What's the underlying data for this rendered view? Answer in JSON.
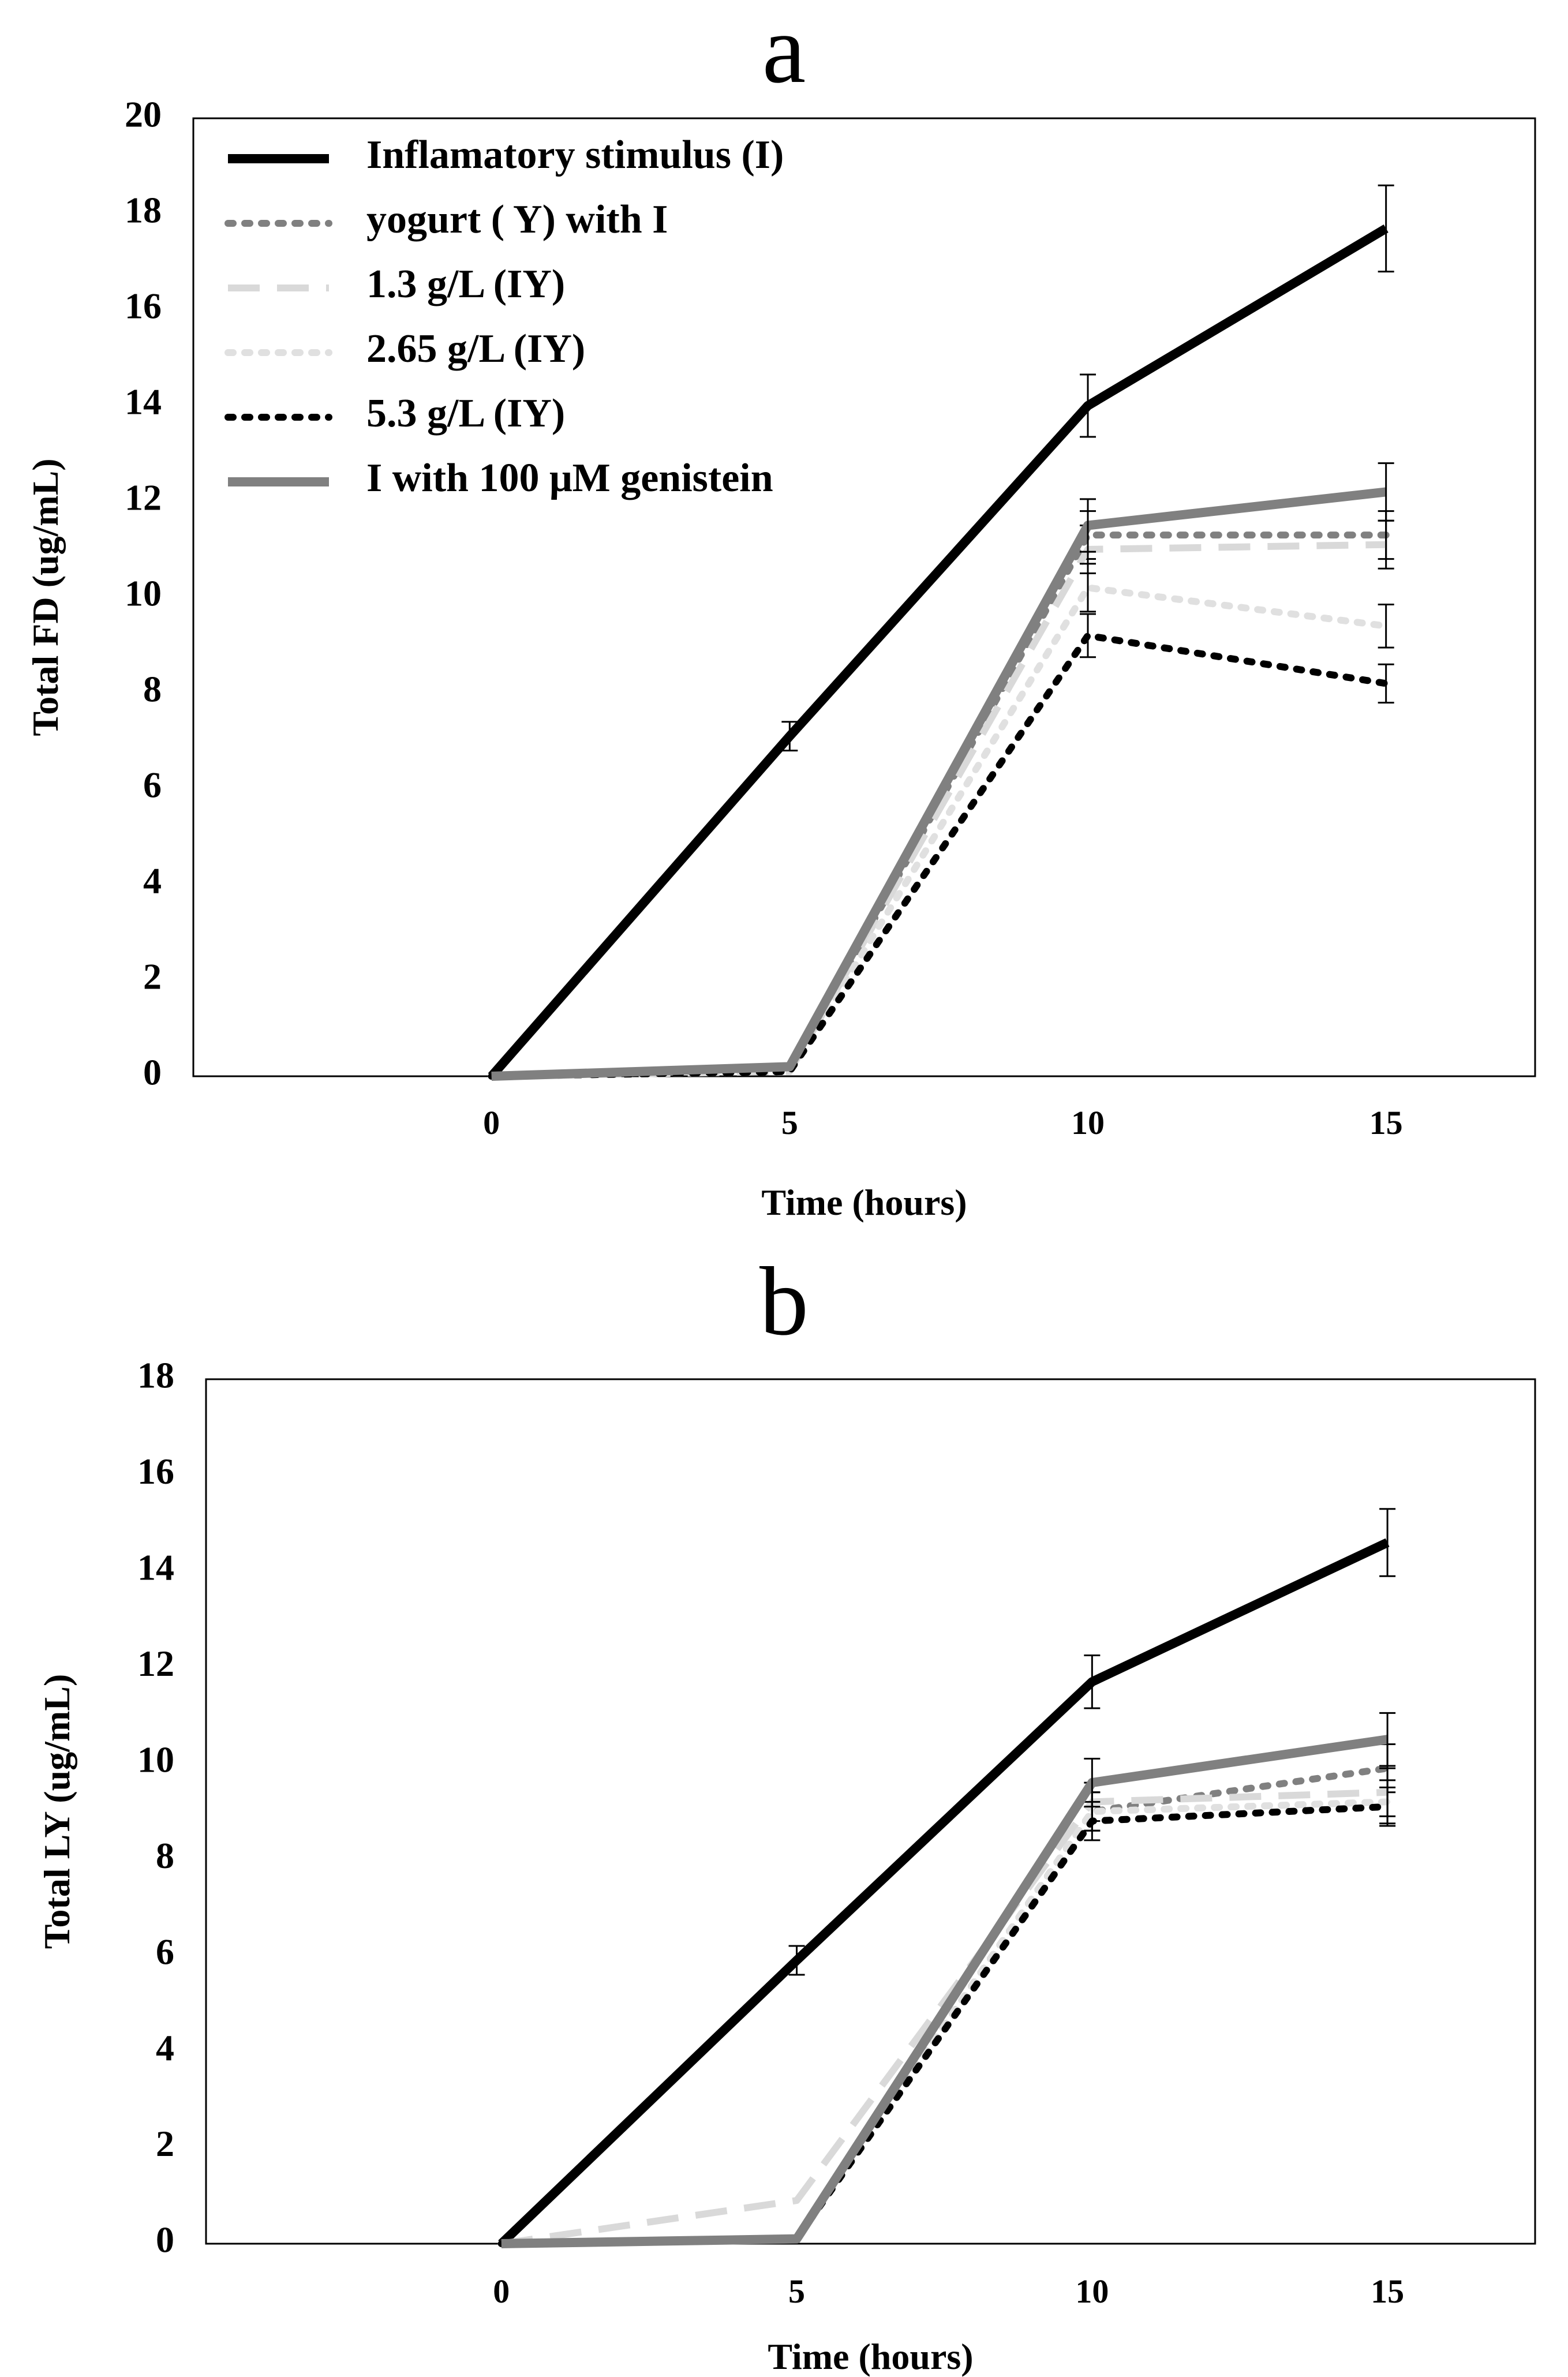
{
  "chart_data": [
    {
      "panel": "a",
      "title": "a",
      "type": "line",
      "xlabel": "Time (hours)",
      "ylabel": "Total FD (ug/mL)",
      "x": [
        0,
        5,
        10,
        15
      ],
      "xticks": [
        "0",
        "5",
        "10",
        "15"
      ],
      "xlim": [
        -5,
        17.5
      ],
      "ylim": [
        0,
        20
      ],
      "yticks": [
        "0",
        "2",
        "4",
        "6",
        "8",
        "10",
        "12",
        "14",
        "16",
        "18",
        "20"
      ],
      "legend_position": "top-left",
      "series": [
        {
          "name": "Inflamatory stimulus (I)",
          "color": "#000000",
          "style": "solid",
          "values": [
            0,
            7.1,
            14.0,
            17.7
          ],
          "errors": [
            0,
            0.3,
            0.65,
            0.9
          ]
        },
        {
          "name": "yogurt ( Y) with I",
          "color": "#808080",
          "style": "dotted",
          "values": [
            0,
            0.1,
            11.3,
            11.3
          ],
          "errors": [
            0,
            0,
            0.5,
            0.5
          ]
        },
        {
          "name": "1.3 g/L (IY)",
          "color": "#d9d9d9",
          "style": "dashed",
          "values": [
            0,
            0.1,
            11.0,
            11.1
          ],
          "errors": [
            0,
            0,
            0.5,
            0.5
          ]
        },
        {
          "name": "2.65 g/L (IY)",
          "color": "#e0e0e0",
          "style": "dotted",
          "values": [
            0,
            0.1,
            10.2,
            9.4
          ],
          "errors": [
            0,
            0,
            0.5,
            0.45
          ]
        },
        {
          "name": "5.3 g/L (IY)",
          "color": "#000000",
          "style": "dotted",
          "values": [
            0,
            0.1,
            9.2,
            8.2
          ],
          "errors": [
            0,
            0,
            0.45,
            0.4
          ]
        },
        {
          "name": "I with 100 μM genistein",
          "color": "#808080",
          "style": "solid",
          "values": [
            0,
            0.2,
            11.5,
            12.2
          ],
          "errors": [
            0,
            0,
            0.55,
            0.6
          ]
        }
      ]
    },
    {
      "panel": "b",
      "title": "b",
      "type": "line",
      "xlabel": "Time (hours)",
      "ylabel": "Total LY (ug/mL)",
      "x": [
        0,
        5,
        10,
        15
      ],
      "xticks": [
        "0",
        "5",
        "10",
        "15"
      ],
      "xlim": [
        -5,
        17.5
      ],
      "ylim": [
        0,
        18
      ],
      "yticks": [
        "0",
        "2",
        "4",
        "6",
        "8",
        "10",
        "12",
        "14",
        "16",
        "18"
      ],
      "series": [
        {
          "name": "Inflamatory stimulus (I)",
          "color": "#000000",
          "style": "solid",
          "values": [
            0,
            5.9,
            11.7,
            14.6
          ],
          "errors": [
            0,
            0.3,
            0.55,
            0.7
          ]
        },
        {
          "name": "yogurt ( Y) with I",
          "color": "#808080",
          "style": "dotted",
          "values": [
            0,
            0.1,
            9.0,
            9.9
          ],
          "errors": [
            0,
            0,
            0.4,
            0.5
          ]
        },
        {
          "name": "1.3 g/L (IY)",
          "color": "#d9d9d9",
          "style": "dashed",
          "values": [
            0,
            0.9,
            9.2,
            9.4
          ],
          "errors": [
            0,
            0,
            0.4,
            0.5
          ]
        },
        {
          "name": "2.65 g/L (IY)",
          "color": "#e0e0e0",
          "style": "dotted",
          "values": [
            0,
            0.1,
            9.0,
            9.2
          ],
          "errors": [
            0,
            0,
            0.4,
            0.45
          ]
        },
        {
          "name": "5.3 g/L (IY)",
          "color": "#000000",
          "style": "dotted",
          "values": [
            0,
            0.1,
            8.8,
            9.1
          ],
          "errors": [
            0,
            0,
            0.4,
            0.4
          ]
        },
        {
          "name": "I with 100 μM genistein",
          "color": "#808080",
          "style": "solid",
          "values": [
            0,
            0.1,
            9.6,
            10.5
          ],
          "errors": [
            0,
            0,
            0.5,
            0.55
          ]
        }
      ]
    }
  ]
}
